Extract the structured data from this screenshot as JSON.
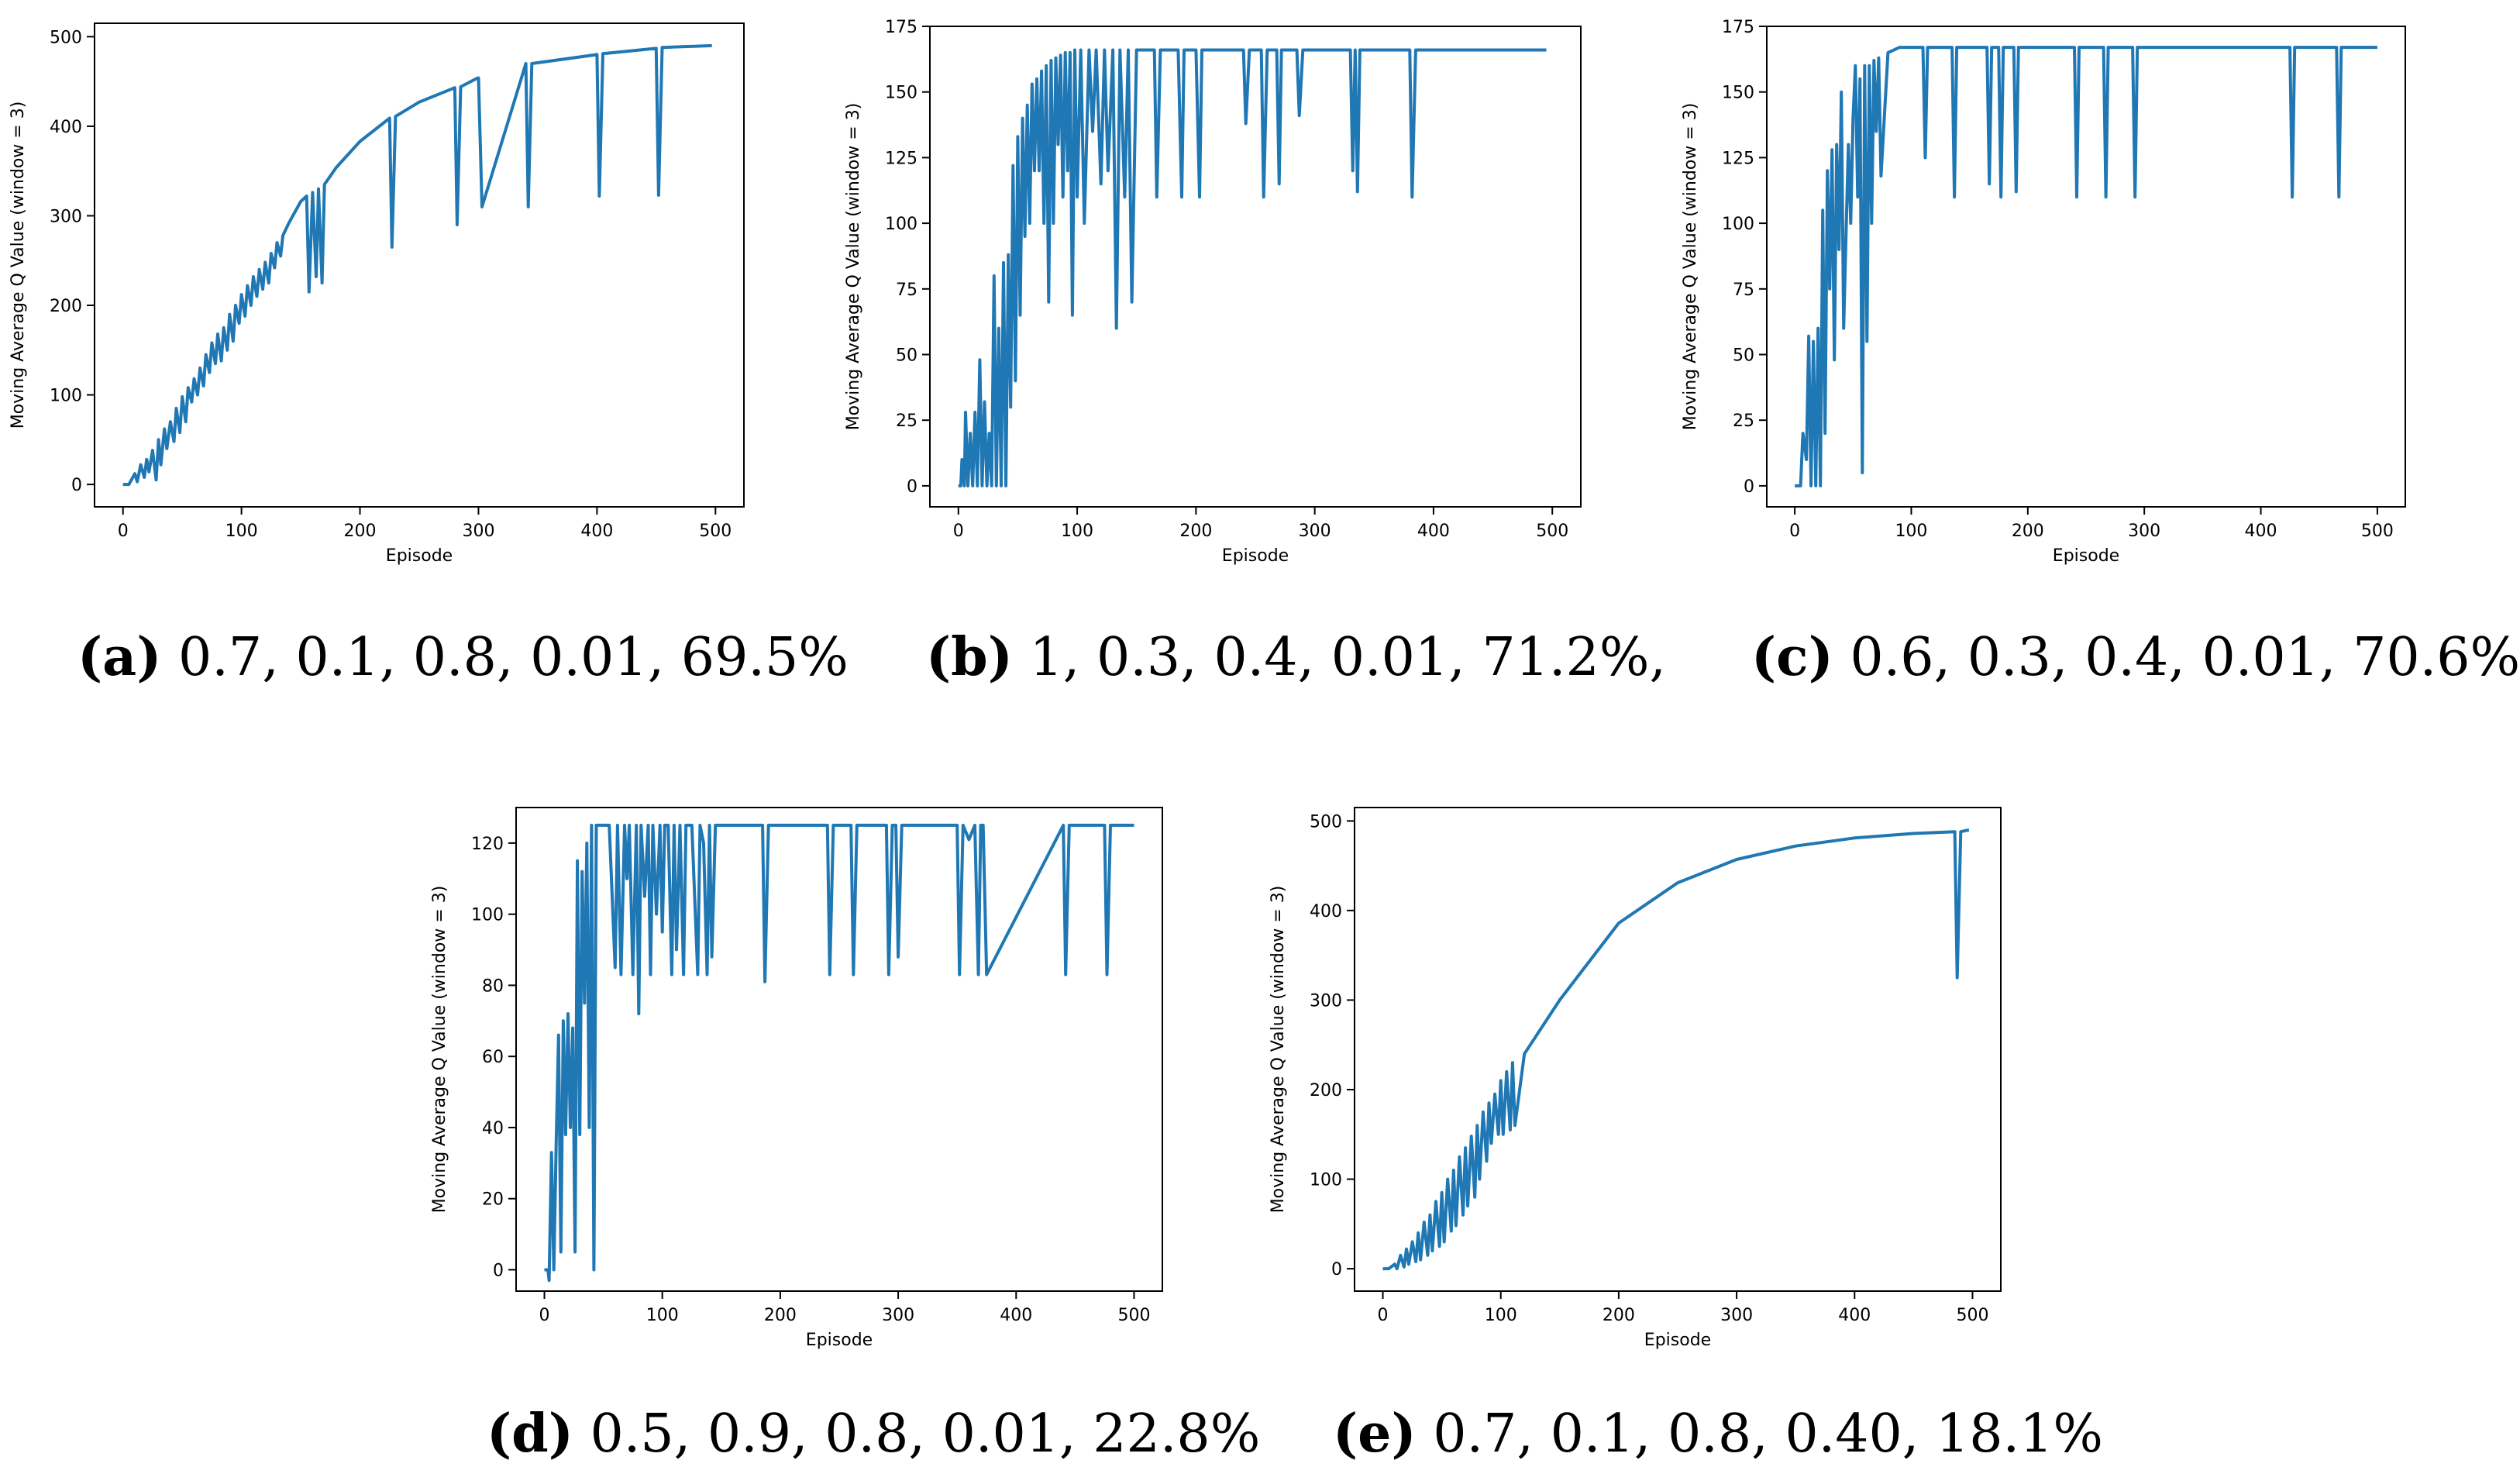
{
  "series_color": "#1f77b4",
  "subfigures": [
    {
      "label": "(a)",
      "caption": "0.7, 0.1, 0.8, 0.01, 69.5%"
    },
    {
      "label": "(b)",
      "caption": "1, 0.3, 0.4, 0.01, 71.2%,"
    },
    {
      "label": "(c)",
      "caption": "0.6, 0.3, 0.4, 0.01, 70.6%"
    },
    {
      "label": "(d)",
      "caption": "0.5, 0.9, 0.8, 0.01, 22.8%"
    },
    {
      "label": "(e)",
      "caption": "0.7, 0.1, 0.8, 0.40, 18.1%"
    }
  ],
  "chart_data": [
    {
      "id": "a",
      "type": "line",
      "xlabel": "Episode",
      "ylabel": "Moving Average Q Value (window = 3)",
      "xlim": [
        -24,
        524
      ],
      "ylim": [
        -25,
        515
      ],
      "xticks": [
        0,
        100,
        200,
        300,
        400,
        500
      ],
      "yticks": [
        0,
        100,
        200,
        300,
        400,
        500
      ],
      "x": [
        0,
        5,
        10,
        12,
        15,
        18,
        20,
        22,
        25,
        28,
        30,
        32,
        35,
        37,
        40,
        43,
        45,
        48,
        50,
        53,
        55,
        58,
        60,
        63,
        65,
        68,
        70,
        73,
        75,
        78,
        80,
        83,
        85,
        88,
        90,
        93,
        95,
        98,
        100,
        103,
        105,
        108,
        110,
        113,
        115,
        118,
        120,
        123,
        125,
        128,
        130,
        133,
        135,
        140,
        150,
        155,
        157,
        160,
        163,
        165,
        168,
        170,
        180,
        200,
        225,
        227,
        230,
        250,
        280,
        282,
        285,
        298,
        300,
        303,
        340,
        342,
        345,
        400,
        402,
        405,
        450,
        452,
        455,
        497
      ],
      "y": [
        0,
        0,
        12,
        3,
        22,
        8,
        28,
        14,
        38,
        5,
        50,
        22,
        62,
        40,
        70,
        48,
        85,
        58,
        98,
        70,
        108,
        92,
        118,
        100,
        130,
        110,
        145,
        125,
        158,
        135,
        168,
        138,
        175,
        150,
        190,
        160,
        200,
        180,
        212,
        188,
        222,
        200,
        232,
        210,
        240,
        218,
        248,
        225,
        258,
        242,
        270,
        255,
        278,
        292,
        316,
        322,
        215,
        326,
        232,
        330,
        225,
        335,
        354,
        383,
        409,
        265,
        411,
        427,
        443,
        290,
        444,
        453,
        454,
        310,
        470,
        310,
        470,
        480,
        322,
        481,
        487,
        323,
        488,
        490
      ]
    },
    {
      "id": "b",
      "type": "line",
      "xlabel": "Episode",
      "ylabel": "Moving Average Q Value (window = 3)",
      "xlim": [
        -24,
        524
      ],
      "ylim": [
        -8,
        175
      ],
      "xticks": [
        0,
        100,
        200,
        300,
        400,
        500
      ],
      "yticks": [
        0,
        25,
        50,
        75,
        100,
        125,
        150,
        175
      ],
      "x": [
        0,
        2,
        3,
        5,
        6,
        8,
        10,
        12,
        14,
        16,
        18,
        20,
        22,
        24,
        26,
        28,
        30,
        32,
        34,
        36,
        38,
        40,
        42,
        44,
        46,
        48,
        50,
        52,
        54,
        56,
        58,
        60,
        62,
        64,
        66,
        68,
        70,
        72,
        74,
        76,
        78,
        80,
        82,
        84,
        86,
        88,
        90,
        92,
        94,
        96,
        98,
        100,
        103,
        106,
        110,
        113,
        116,
        120,
        123,
        126,
        130,
        133,
        136,
        140,
        143,
        146,
        150,
        160,
        165,
        167,
        170,
        185,
        188,
        190,
        200,
        203,
        205,
        220,
        240,
        242,
        245,
        255,
        257,
        260,
        268,
        270,
        272,
        285,
        287,
        290,
        330,
        332,
        334,
        336,
        338,
        380,
        382,
        385,
        495
      ],
      "y": [
        0,
        0,
        10,
        0,
        28,
        0,
        20,
        0,
        28,
        0,
        48,
        0,
        32,
        0,
        20,
        0,
        80,
        0,
        60,
        0,
        85,
        0,
        88,
        30,
        122,
        40,
        133,
        65,
        140,
        95,
        145,
        100,
        153,
        120,
        155,
        120,
        158,
        100,
        160,
        70,
        162,
        100,
        163,
        130,
        164,
        110,
        165,
        120,
        165,
        65,
        166,
        110,
        166,
        100,
        166,
        135,
        166,
        115,
        166,
        120,
        166,
        60,
        166,
        110,
        166,
        70,
        166,
        166,
        166,
        110,
        166,
        166,
        110,
        166,
        166,
        110,
        166,
        166,
        166,
        138,
        166,
        166,
        110,
        166,
        166,
        115,
        166,
        166,
        141,
        166,
        166,
        120,
        166,
        112,
        166,
        166,
        110,
        166,
        166
      ]
    },
    {
      "id": "c",
      "type": "line",
      "xlabel": "Episode",
      "ylabel": "Moving Average Q Value (window = 3)",
      "xlim": [
        -24,
        524
      ],
      "ylim": [
        -8,
        175
      ],
      "xticks": [
        0,
        100,
        200,
        300,
        400,
        500
      ],
      "yticks": [
        0,
        25,
        50,
        75,
        100,
        125,
        150,
        175
      ],
      "x": [
        0,
        5,
        7,
        10,
        12,
        14,
        16,
        18,
        20,
        22,
        24,
        26,
        28,
        30,
        32,
        34,
        36,
        38,
        40,
        42,
        44,
        46,
        48,
        50,
        52,
        54,
        56,
        58,
        60,
        62,
        64,
        66,
        68,
        70,
        72,
        74,
        80,
        90,
        110,
        112,
        114,
        135,
        137,
        139,
        165,
        167,
        169,
        175,
        177,
        179,
        188,
        190,
        192,
        240,
        242,
        244,
        265,
        267,
        269,
        290,
        292,
        294,
        425,
        427,
        429,
        465,
        467,
        469,
        500
      ],
      "y": [
        0,
        0,
        20,
        10,
        57,
        0,
        55,
        0,
        60,
        0,
        105,
        20,
        120,
        75,
        128,
        48,
        130,
        90,
        150,
        60,
        95,
        130,
        100,
        140,
        160,
        110,
        155,
        5,
        160,
        55,
        160,
        100,
        162,
        135,
        163,
        118,
        165,
        167,
        167,
        125,
        167,
        167,
        110,
        167,
        167,
        115,
        167,
        167,
        110,
        167,
        167,
        112,
        167,
        167,
        110,
        167,
        167,
        110,
        167,
        167,
        110,
        167,
        167,
        110,
        167,
        167,
        110,
        167,
        167
      ]
    },
    {
      "id": "d",
      "type": "line",
      "xlabel": "Episode",
      "ylabel": "Moving Average Q Value (window = 3)",
      "xlim": [
        -24,
        524
      ],
      "ylim": [
        -6,
        130
      ],
      "xticks": [
        0,
        100,
        200,
        300,
        400,
        500
      ],
      "yticks": [
        0,
        20,
        40,
        60,
        80,
        100,
        120
      ],
      "x": [
        0,
        3,
        4,
        6,
        8,
        10,
        12,
        14,
        16,
        18,
        20,
        22,
        24,
        26,
        28,
        30,
        32,
        34,
        36,
        38,
        40,
        42,
        44,
        46,
        48,
        50,
        55,
        60,
        62,
        65,
        68,
        70,
        72,
        75,
        78,
        80,
        82,
        85,
        88,
        90,
        92,
        95,
        98,
        100,
        102,
        105,
        108,
        110,
        112,
        115,
        118,
        120,
        125,
        130,
        132,
        135,
        138,
        140,
        142,
        145,
        185,
        187,
        190,
        240,
        242,
        245,
        260,
        262,
        265,
        290,
        292,
        295,
        298,
        300,
        303,
        350,
        352,
        355,
        360,
        365,
        368,
        370,
        372,
        375,
        440,
        442,
        445,
        475,
        477,
        480,
        500
      ],
      "y": [
        0,
        0,
        -3,
        33,
        0,
        35,
        66,
        5,
        70,
        38,
        72,
        40,
        68,
        5,
        115,
        38,
        112,
        75,
        120,
        40,
        125,
        0,
        125,
        125,
        125,
        125,
        125,
        85,
        125,
        83,
        125,
        110,
        125,
        83,
        125,
        72,
        125,
        105,
        125,
        83,
        125,
        100,
        125,
        95,
        125,
        125,
        83,
        125,
        90,
        125,
        83,
        125,
        125,
        83,
        125,
        120,
        83,
        125,
        88,
        125,
        125,
        81,
        125,
        125,
        83,
        125,
        125,
        83,
        125,
        125,
        83,
        125,
        125,
        88,
        125,
        125,
        83,
        125,
        121,
        125,
        83,
        125,
        125,
        83,
        125,
        83,
        125,
        125,
        83,
        125,
        125
      ]
    },
    {
      "id": "e",
      "type": "line",
      "xlabel": "Episode",
      "ylabel": "Moving Average Q Value (window = 3)",
      "xlim": [
        -24,
        524
      ],
      "ylim": [
        -25,
        515
      ],
      "xticks": [
        0,
        100,
        200,
        300,
        400,
        500
      ],
      "yticks": [
        0,
        100,
        200,
        300,
        400,
        500
      ],
      "x": [
        0,
        5,
        10,
        12,
        15,
        18,
        20,
        22,
        25,
        28,
        30,
        32,
        35,
        38,
        40,
        42,
        45,
        48,
        50,
        52,
        55,
        58,
        60,
        62,
        65,
        68,
        70,
        72,
        75,
        78,
        80,
        82,
        85,
        88,
        90,
        92,
        95,
        98,
        100,
        102,
        105,
        108,
        110,
        112,
        120,
        150,
        200,
        250,
        300,
        350,
        400,
        450,
        485,
        487,
        490,
        497
      ],
      "y": [
        0,
        0,
        5,
        0,
        15,
        2,
        22,
        5,
        30,
        8,
        40,
        10,
        52,
        15,
        60,
        20,
        75,
        25,
        85,
        30,
        100,
        42,
        110,
        48,
        125,
        60,
        135,
        70,
        148,
        80,
        160,
        100,
        175,
        120,
        185,
        140,
        195,
        150,
        210,
        150,
        220,
        155,
        230,
        160,
        240,
        300,
        386,
        431,
        457,
        472,
        481,
        486,
        488,
        325,
        488,
        490
      ]
    }
  ]
}
